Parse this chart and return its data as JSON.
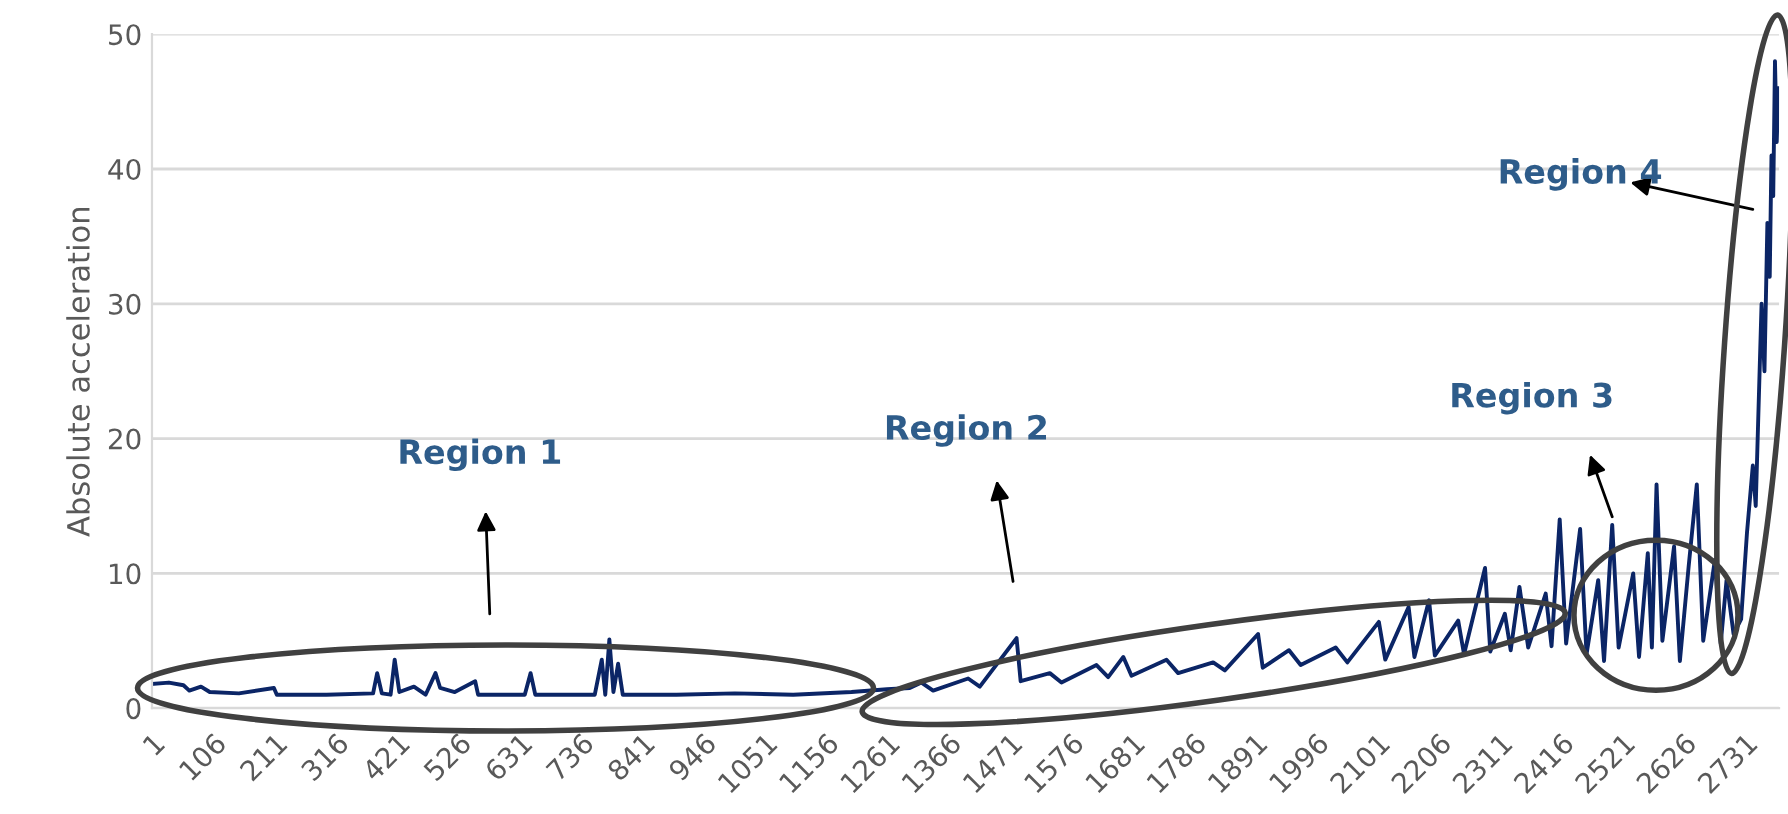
{
  "chart_data": {
    "type": "line",
    "ylabel": "Absolute acceleration",
    "xlim": [
      1,
      2790
    ],
    "xticks": [
      1,
      106,
      211,
      316,
      421,
      526,
      631,
      736,
      841,
      946,
      1051,
      1156,
      1261,
      1366,
      1471,
      1576,
      1681,
      1786,
      1891,
      1996,
      2101,
      2206,
      2311,
      2416,
      2521,
      2626,
      2731
    ],
    "ylim": [
      0,
      50
    ],
    "yticks": [
      0,
      10,
      20,
      30,
      40,
      50
    ],
    "grid": "y",
    "marker": "none",
    "line_style": "solid",
    "annotations": [
      "Region 1",
      "Region 2",
      "Region 3",
      "Region 4"
    ],
    "series": [
      {
        "color": "#0b2566",
        "x": [
          1,
          30,
          55,
          65,
          85,
          100,
          150,
          210,
          215,
          300,
          380,
          387,
          395,
          410,
          417,
          425,
          450,
          470,
          487,
          495,
          520,
          555,
          560,
          640,
          650,
          658,
          760,
          772,
          778,
          785,
          792,
          800,
          808,
          900,
          1000,
          1100,
          1200,
          1261,
          1300,
          1320,
          1340,
          1400,
          1420,
          1483,
          1490,
          1540,
          1560,
          1620,
          1640,
          1666,
          1680,
          1740,
          1760,
          1820,
          1840,
          1897,
          1905,
          1950,
          1970,
          2030,
          2050,
          2104,
          2115,
          2155,
          2165,
          2190,
          2200,
          2240,
          2250,
          2286,
          2295,
          2320,
          2330,
          2345,
          2360,
          2390,
          2400,
          2414,
          2425,
          2449,
          2460,
          2480,
          2490,
          2504,
          2515,
          2540,
          2550,
          2565,
          2572,
          2580,
          2590,
          2610,
          2620,
          2635,
          2649,
          2660,
          2680,
          2690,
          2700,
          2712,
          2725,
          2735,
          2745,
          2750,
          2760,
          2765,
          2770,
          2774,
          2777,
          2780,
          2783,
          2786,
          2789
        ],
        "values": [
          1.8,
          1.9,
          1.7,
          1.3,
          1.6,
          1.2,
          1.1,
          1.5,
          1.0,
          1.0,
          1.1,
          2.6,
          1.1,
          1.0,
          3.6,
          1.2,
          1.6,
          1.0,
          2.6,
          1.5,
          1.2,
          2.0,
          1.0,
          1.0,
          2.6,
          1.0,
          1.0,
          3.6,
          1.0,
          5.1,
          1.2,
          3.3,
          1.0,
          1.0,
          1.1,
          1.0,
          1.2,
          1.4,
          1.5,
          1.9,
          1.3,
          2.2,
          1.6,
          5.2,
          2.0,
          2.6,
          1.9,
          3.2,
          2.3,
          3.8,
          2.4,
          3.6,
          2.6,
          3.4,
          2.8,
          5.5,
          3.0,
          4.3,
          3.2,
          4.5,
          3.4,
          6.4,
          3.6,
          7.5,
          3.8,
          8.0,
          3.9,
          6.5,
          4.0,
          10.4,
          4.2,
          7.0,
          4.3,
          9.0,
          4.5,
          8.5,
          4.6,
          14.0,
          4.8,
          13.3,
          4.0,
          9.5,
          3.5,
          13.6,
          4.5,
          10.0,
          3.8,
          11.5,
          4.5,
          16.6,
          5.0,
          12.0,
          3.5,
          10.5,
          16.6,
          5.0,
          11.0,
          4.8,
          9.5,
          5.5,
          6.6,
          13.0,
          18.0,
          15.0,
          30.0,
          25.0,
          36.0,
          32.0,
          41.0,
          38.0,
          48.0,
          42.0,
          46.0
        ]
      }
    ]
  }
}
